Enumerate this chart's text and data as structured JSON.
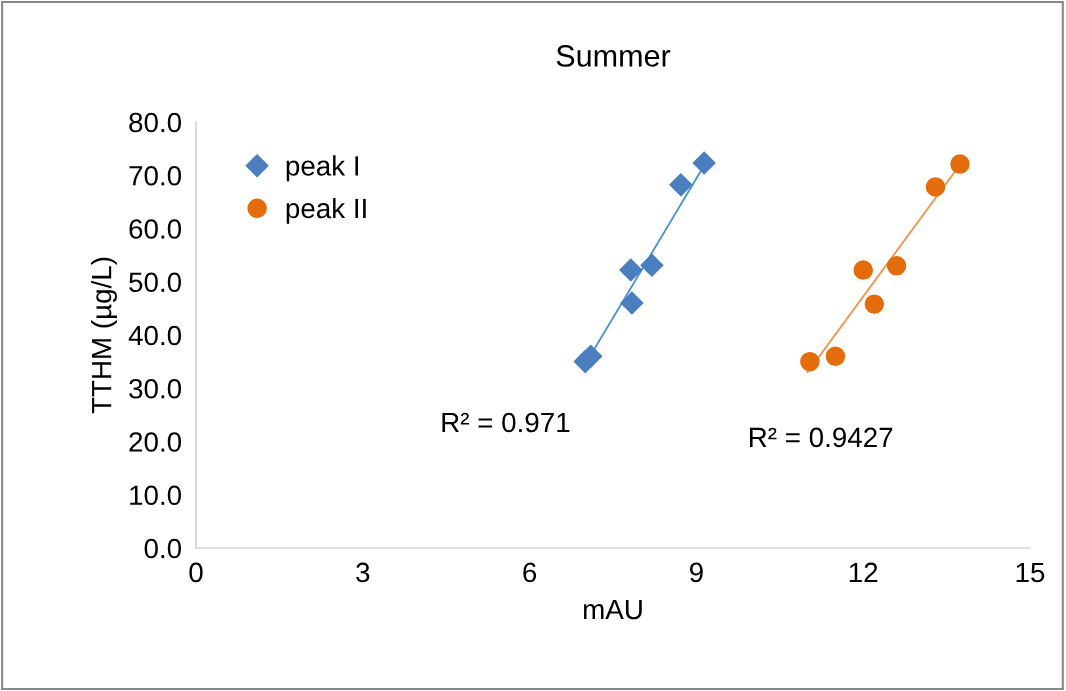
{
  "chart_data": {
    "type": "scatter",
    "title": "Summer",
    "xlabel": "mAU",
    "ylabel": "TTHM (µg/L)",
    "xlim": [
      0,
      15
    ],
    "xticks": [
      0,
      3,
      6,
      9,
      12,
      15
    ],
    "ylim": [
      0,
      80
    ],
    "yticks": [
      {
        "value": 0,
        "label": "0.0"
      },
      {
        "value": 10,
        "label": "10.0"
      },
      {
        "value": 20,
        "label": "20.0"
      },
      {
        "value": 30,
        "label": "30.0"
      },
      {
        "value": 40,
        "label": "40.0"
      },
      {
        "value": 50,
        "label": "50.0"
      },
      {
        "value": 60,
        "label": "60.0"
      },
      {
        "value": 70,
        "label": "70.0"
      },
      {
        "value": 80,
        "label": "80.0"
      }
    ],
    "grid": false,
    "legend": "top left",
    "series": [
      {
        "name": "peak I",
        "color": "#4a7ebf",
        "marker": "diamond",
        "x": [
          7.0,
          7.1,
          7.84,
          7.82,
          8.2,
          8.72,
          9.14
        ],
        "values": [
          35.0,
          36.0,
          46.0,
          52.2,
          53.1,
          68.2,
          72.3
        ]
      },
      {
        "name": "peak II",
        "color": "#e46c0a",
        "marker": "circle",
        "x": [
          11.04,
          11.5,
          12.2,
          12.0,
          12.6,
          13.3,
          13.74
        ],
        "values": [
          35.0,
          36.0,
          45.8,
          52.2,
          53.0,
          67.8,
          72.1
        ]
      },
      {
        "type": "line",
        "color": "#4a90d9",
        "x": [
          6.96,
          9.2
        ],
        "values": [
          33.8,
          72.9
        ]
      },
      {
        "type": "line",
        "color": "#f0924a",
        "x": [
          11.0,
          13.7
        ],
        "values": [
          33.0,
          71.4
        ]
      }
    ],
    "annotations": [
      "R² = 0.971",
      "R² = 0.9427"
    ]
  }
}
